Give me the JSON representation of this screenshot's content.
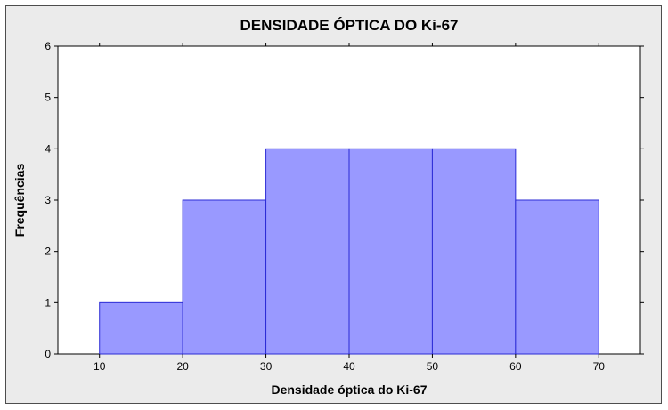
{
  "chart_data": {
    "type": "bar",
    "title": "DENSIDADE ÓPTICA DO Ki-67",
    "xlabel": "Densidade óptica do Ki-67",
    "ylabel": "Frequências",
    "bins": [
      {
        "from": 10,
        "to": 20,
        "value": 1
      },
      {
        "from": 20,
        "to": 30,
        "value": 3
      },
      {
        "from": 30,
        "to": 40,
        "value": 4
      },
      {
        "from": 40,
        "to": 50,
        "value": 4
      },
      {
        "from": 50,
        "to": 60,
        "value": 4
      },
      {
        "from": 60,
        "to": 70,
        "value": 3
      }
    ],
    "xlim": [
      5,
      75
    ],
    "ylim": [
      0,
      6
    ],
    "xticks": [
      "10",
      "20",
      "30",
      "40",
      "50",
      "60",
      "70"
    ],
    "yticks": [
      "0",
      "1",
      "2",
      "3",
      "4",
      "5",
      "6"
    ],
    "grid": false,
    "colors": {
      "bar_fill": "#9999ff",
      "bar_stroke": "#2b2bd6",
      "plot_background": "#ffffff",
      "frame_background": "#ebebeb"
    }
  }
}
